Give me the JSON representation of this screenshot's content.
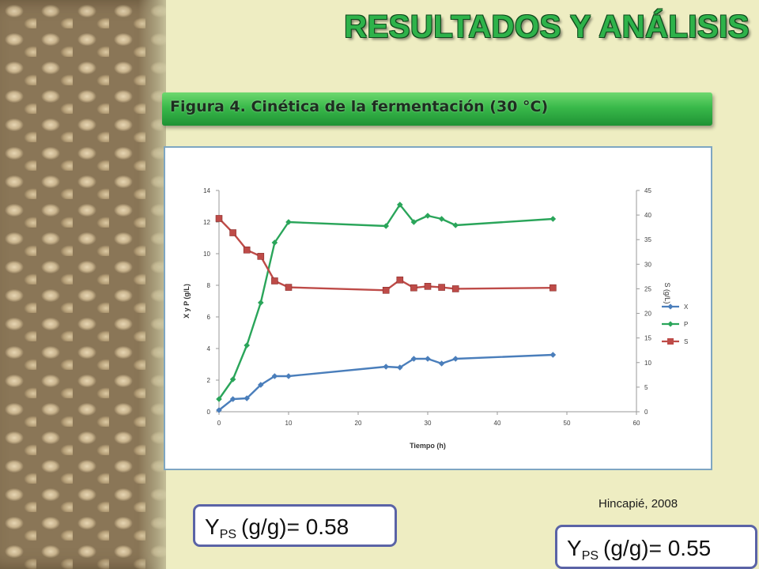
{
  "slide": {
    "title": "RESULTADOS Y ANÁLISIS",
    "figure_title": "Figura 4. Cinética de la fermentación (30 °C)",
    "citation": "Hincapié, 2008",
    "yields": [
      {
        "label": "Y",
        "subscript": "PS",
        "text": "(g/g)= 0.58"
      },
      {
        "label": "Y",
        "subscript": "PS",
        "text": "(g/g)= 0.55"
      }
    ]
  },
  "chart_data": {
    "type": "line",
    "xlabel": "Tiempo (h)",
    "ylabel_left": "X y P (g/L)",
    "ylabel_right": "S (g/L)",
    "xlim": [
      0,
      60
    ],
    "ylim_left": [
      0,
      14
    ],
    "ylim_right": [
      0,
      45
    ],
    "x_ticks": [
      0,
      10,
      20,
      30,
      40,
      50,
      60
    ],
    "y_left_ticks": [
      0,
      2,
      4,
      6,
      8,
      10,
      12,
      14
    ],
    "y_right_ticks": [
      0,
      5,
      10,
      15,
      20,
      25,
      30,
      35,
      40,
      45
    ],
    "grid": false,
    "legend_position": "right",
    "series": [
      {
        "name": "X",
        "axis": "left",
        "color": "#4a7ebb",
        "marker": "diamond",
        "points": [
          [
            0,
            0.1
          ],
          [
            2,
            0.8
          ],
          [
            4,
            0.85
          ],
          [
            6,
            1.7
          ],
          [
            8,
            2.25
          ],
          [
            10,
            2.25
          ],
          [
            24,
            2.85
          ],
          [
            26,
            2.8
          ],
          [
            28,
            3.35
          ],
          [
            30,
            3.35
          ],
          [
            32,
            3.05
          ],
          [
            34,
            3.35
          ],
          [
            48,
            3.6
          ]
        ]
      },
      {
        "name": "P",
        "axis": "left",
        "color": "#2aa55a",
        "marker": "diamond",
        "points": [
          [
            0,
            0.8
          ],
          [
            2,
            2.05
          ],
          [
            4,
            4.2
          ],
          [
            6,
            6.9
          ],
          [
            8,
            10.7
          ],
          [
            10,
            12.0
          ],
          [
            24,
            11.75
          ],
          [
            26,
            13.1
          ],
          [
            28,
            12.0
          ],
          [
            30,
            12.4
          ],
          [
            32,
            12.2
          ],
          [
            34,
            11.8
          ],
          [
            48,
            12.2
          ]
        ]
      },
      {
        "name": "S",
        "axis": "right",
        "color": "#be4b48",
        "marker": "square",
        "points": [
          [
            0,
            39.3
          ],
          [
            2,
            36.4
          ],
          [
            4,
            32.9
          ],
          [
            6,
            31.6
          ],
          [
            8,
            26.6
          ],
          [
            10,
            25.3
          ],
          [
            24,
            24.7
          ],
          [
            26,
            26.8
          ],
          [
            28,
            25.2
          ],
          [
            30,
            25.5
          ],
          [
            32,
            25.3
          ],
          [
            34,
            25.0
          ],
          [
            48,
            25.2
          ]
        ]
      }
    ]
  }
}
